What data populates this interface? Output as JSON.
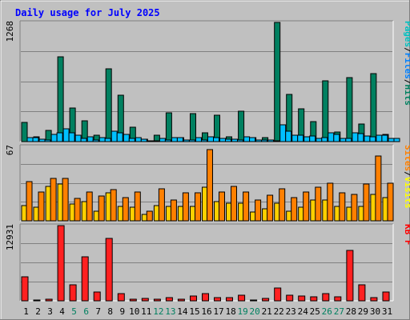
{
  "chart_data": [
    {
      "type": "bar",
      "title": "Daily usage for July 2025",
      "ymax_label": "1268",
      "categories": [
        "1",
        "2",
        "3",
        "4",
        "5",
        "6",
        "7",
        "8",
        "9",
        "10",
        "11",
        "12",
        "13",
        "14",
        "15",
        "16",
        "17",
        "18",
        "19",
        "20",
        "21",
        "22",
        "23",
        "24",
        "25",
        "26",
        "27",
        "28",
        "29",
        "30",
        "31"
      ],
      "weekend_days": [
        "5",
        "6",
        "12",
        "13",
        "19",
        "20",
        "26",
        "27"
      ],
      "legend": [
        {
          "name": "Pages",
          "color": "#00c0c0"
        },
        {
          "name": "/",
          "color": "#000000"
        },
        {
          "name": "Files",
          "color": "#0080ff"
        },
        {
          "name": "/",
          "color": "#000000"
        },
        {
          "name": "Hits",
          "color": "#008060"
        }
      ],
      "series": [
        {
          "name": "Hits",
          "color": "#008060",
          "values": [
            200,
            55,
            120,
            900,
            355,
            225,
            65,
            775,
            490,
            150,
            25,
            65,
            310,
            40,
            295,
            95,
            280,
            55,
            320,
            45,
            45,
            1268,
            500,
            345,
            215,
            645,
            105,
            685,
            190,
            725,
            80
          ]
        },
        {
          "name": "Files",
          "color": "#00c0ff",
          "values": [
            40,
            25,
            80,
            135,
            65,
            50,
            45,
            110,
            75,
            40,
            10,
            30,
            45,
            20,
            40,
            50,
            35,
            25,
            55,
            15,
            15,
            175,
            70,
            50,
            35,
            90,
            35,
            90,
            60,
            70,
            30
          ]
        },
        {
          "name": "Pages",
          "color": "#00c0ff",
          "values": [
            40,
            15,
            90,
            95,
            30,
            20,
            35,
            90,
            30,
            25,
            10,
            15,
            40,
            15,
            20,
            45,
            25,
            20,
            45,
            15,
            10,
            110,
            65,
            60,
            40,
            75,
            30,
            85,
            50,
            70,
            30
          ]
        }
      ]
    },
    {
      "type": "bar",
      "ymax_label": "67",
      "legend": [
        {
          "name": "Sites",
          "color": "#ff8000"
        },
        {
          "name": "/",
          "color": "#000000"
        },
        {
          "name": "Visits",
          "color": "#ffff00"
        }
      ],
      "series": [
        {
          "name": "Visits",
          "color": "#ffd000",
          "values": [
            14,
            12,
            31,
            33,
            15,
            17,
            9,
            25,
            13,
            12,
            6,
            14,
            13,
            13,
            13,
            30,
            17,
            16,
            16,
            8,
            11,
            16,
            9,
            12,
            19,
            19,
            13,
            12,
            13,
            24,
            21
          ]
        },
        {
          "name": "Sites",
          "color": "#ff8000",
          "values": [
            35,
            26,
            38,
            38,
            20,
            26,
            22,
            28,
            21,
            26,
            9,
            29,
            19,
            25,
            25,
            64,
            26,
            31,
            26,
            19,
            23,
            29,
            21,
            26,
            30,
            34,
            25,
            24,
            33,
            58,
            34
          ]
        }
      ]
    },
    {
      "type": "bar",
      "ymax_label": "12931",
      "legend": [
        {
          "name": "KB F",
          "color": "#ff0000"
        }
      ],
      "series": [
        {
          "name": "KB F",
          "color": "#ff2020",
          "values": [
            4100,
            150,
            260,
            12931,
            2700,
            7600,
            1500,
            10700,
            1220,
            270,
            400,
            330,
            610,
            260,
            880,
            1200,
            610,
            610,
            940,
            150,
            400,
            2170,
            950,
            760,
            720,
            1220,
            670,
            8700,
            2760,
            590,
            1450
          ]
        }
      ]
    }
  ]
}
